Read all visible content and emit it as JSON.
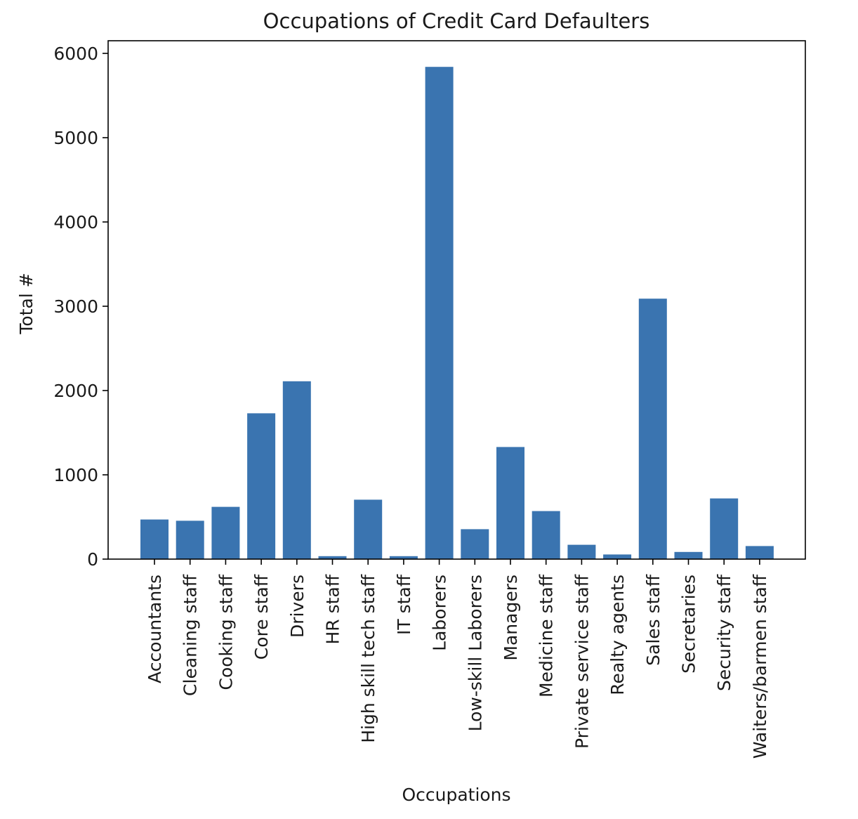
{
  "chart_data": {
    "type": "bar",
    "title": "Occupations of Credit Card Defaulters",
    "xlabel": "Occupations",
    "ylabel": "Total #",
    "categories": [
      "Accountants",
      "Cleaning staff",
      "Cooking staff",
      "Core staff",
      "Drivers",
      "HR staff",
      "High skill tech staff",
      "IT staff",
      "Laborers",
      "Low-skill Laborers",
      "Managers",
      "Medicine staff",
      "Private service staff",
      "Realty agents",
      "Sales staff",
      "Secretaries",
      "Security staff",
      "Waiters/barmen staff"
    ],
    "values": [
      470,
      455,
      620,
      1730,
      2110,
      35,
      705,
      35,
      5840,
      355,
      1330,
      570,
      170,
      55,
      3090,
      85,
      720,
      155
    ],
    "ylim": [
      0,
      6150
    ],
    "yticks": [
      0,
      1000,
      2000,
      3000,
      4000,
      5000,
      6000
    ],
    "grid": false,
    "legend": "none",
    "bar_color": "#3a74b0"
  }
}
